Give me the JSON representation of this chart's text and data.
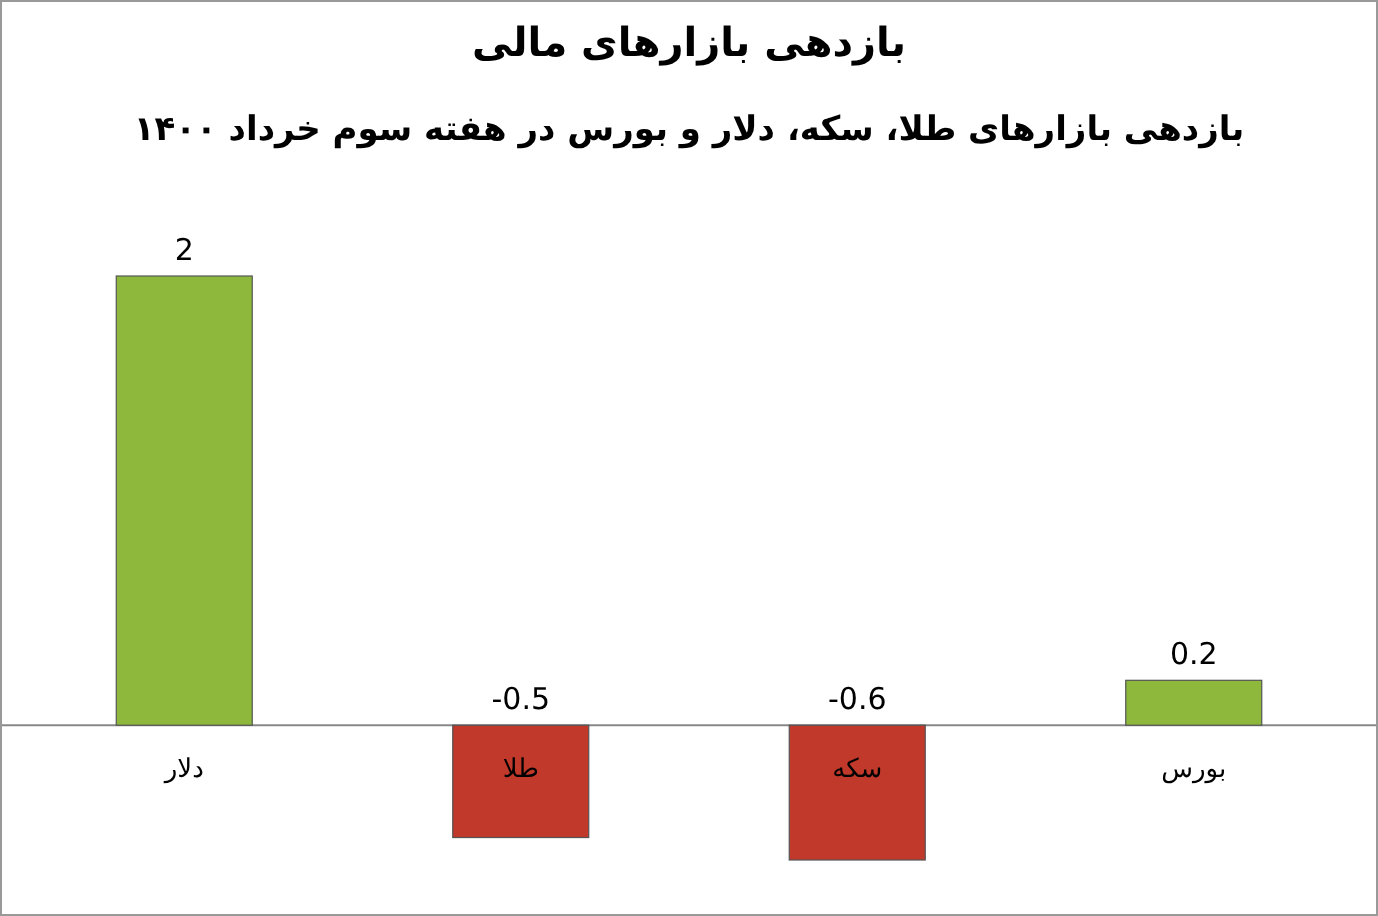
{
  "chart_data": {
    "type": "bar",
    "title": "بازدهی بازارهای مالی",
    "subtitle": "بازدهی بازارهای طلا، سکه، دلار و بورس در هفته سوم خرداد ۱۴۰۰",
    "categories": [
      "دلار",
      "طلا",
      "سکه",
      "بورس"
    ],
    "values": [
      2,
      -0.5,
      -0.6,
      0.2
    ],
    "colors": [
      "#8db83c",
      "#c0392b",
      "#c0392b",
      "#8db83c"
    ],
    "data_labels": true
  }
}
